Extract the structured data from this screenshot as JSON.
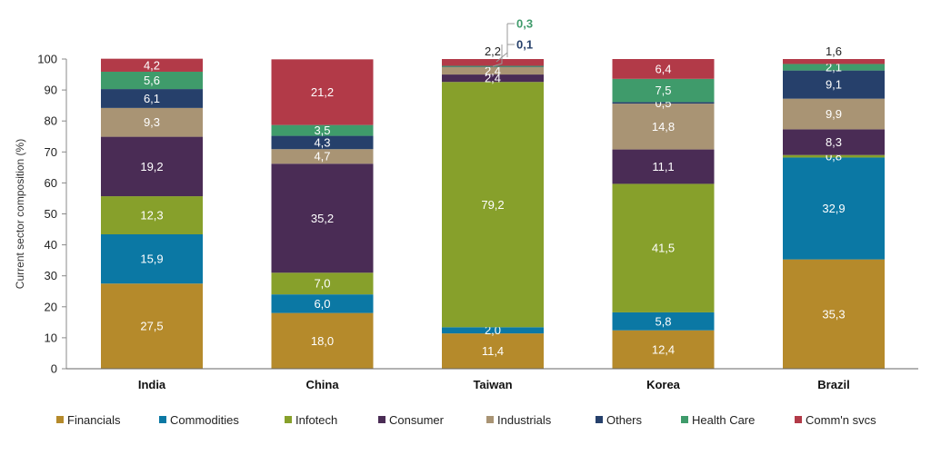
{
  "chart_data": {
    "type": "bar",
    "stacked": true,
    "ylabel": "Current sector composition (%)",
    "ylim": [
      0,
      100
    ],
    "yticks": [
      0,
      10,
      20,
      30,
      40,
      50,
      60,
      70,
      80,
      90,
      100
    ],
    "categories": [
      "India",
      "China",
      "Taiwan",
      "Korea",
      "Brazil"
    ],
    "legend_position": "bottom",
    "series": [
      {
        "name": "Financials",
        "color": "#b58a2b",
        "values": [
          27.5,
          18.0,
          11.4,
          12.4,
          35.3
        ],
        "labels": [
          "27,5",
          "18,0",
          "11,4",
          "12,4",
          "35,3"
        ]
      },
      {
        "name": "Commodities",
        "color": "#0b78a4",
        "values": [
          15.9,
          6.0,
          2.0,
          5.8,
          32.9
        ],
        "labels": [
          "15,9",
          "6,0",
          "2,0",
          "5,8",
          "32,9"
        ]
      },
      {
        "name": "Infotech",
        "color": "#87a02b",
        "values": [
          12.3,
          7.0,
          79.2,
          41.5,
          0.8
        ],
        "labels": [
          "12,3",
          "7,0",
          "79,2",
          "41,5",
          "0,8"
        ]
      },
      {
        "name": "Consumer",
        "color": "#4a2c55",
        "values": [
          19.2,
          35.2,
          2.4,
          11.1,
          8.3
        ],
        "labels": [
          "19,2",
          "35,2",
          "2,4",
          "11,1",
          "8,3"
        ]
      },
      {
        "name": "Industrials",
        "color": "#a99474",
        "values": [
          9.3,
          4.7,
          2.4,
          14.8,
          9.9
        ],
        "labels": [
          "9,3",
          "4,7",
          "2,4",
          "14,8",
          "9,9"
        ]
      },
      {
        "name": "Others",
        "color": "#26406b",
        "values": [
          6.1,
          4.3,
          0.1,
          0.5,
          9.1
        ],
        "labels": [
          "6,1",
          "4,3",
          "",
          "0,5",
          "9,1"
        ]
      },
      {
        "name": "Health Care",
        "color": "#3f9b6b",
        "values": [
          5.6,
          3.5,
          0.3,
          7.5,
          2.1
        ],
        "labels": [
          "5,6",
          "3,5",
          "",
          "7,5",
          "2,1"
        ]
      },
      {
        "name": "Comm'n svcs",
        "color": "#b23a48",
        "values": [
          4.2,
          21.2,
          2.2,
          6.4,
          1.6
        ],
        "labels": [
          "4,2",
          "21,2",
          "2,2",
          "6,4",
          "1,6"
        ]
      }
    ],
    "callouts": [
      {
        "category": "Taiwan",
        "series": "Health Care",
        "text": "0,3",
        "color": "#3f9b6b"
      },
      {
        "category": "Taiwan",
        "series": "Others",
        "text": "0,1",
        "color": "#26406b"
      }
    ]
  }
}
